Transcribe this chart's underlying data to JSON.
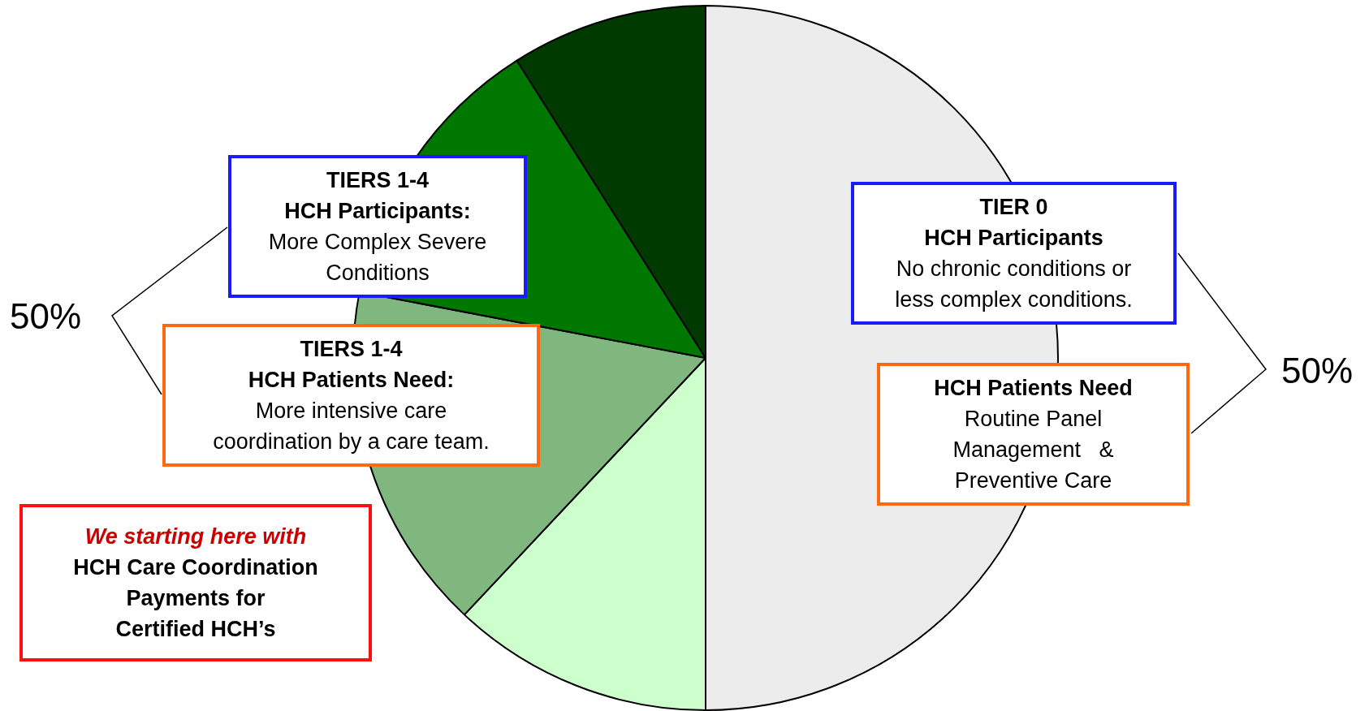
{
  "chart_data": {
    "type": "pie",
    "categories": [
      null,
      null,
      null,
      null,
      null
    ],
    "values": [
      50,
      12,
      16,
      13,
      9
    ],
    "colors": [
      "#ececec",
      "#ccffcc",
      "#7fb77f",
      "#007800",
      "#003a00"
    ],
    "annotations": [
      "50%",
      "TIERS 1-4\nHCH Participants:\nMore Complex Severe\nConditions",
      "TIERS 1-4\nHCH Patients Need:\nMore intensive care\ncoordination by a care team.",
      "We starting here with\nHCH Care Coordination\nPayments for\nCertified HCH’s",
      "TIER 0\nHCH Participants\nNo chronic conditions or\nless complex conditions.",
      "HCH Patients Need\nRoutine Panel\nManagement   &\nPreventive Care",
      "50%"
    ]
  }
}
